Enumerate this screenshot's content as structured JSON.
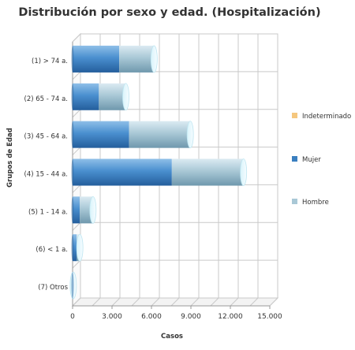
{
  "chart_data": {
    "type": "bar",
    "orientation": "horizontal",
    "stacked": true,
    "title": "Distribución por sexo y edad. (Hospitalización)",
    "xlabel": "Casos",
    "ylabel": "Grupos de Edad",
    "xlim": [
      0,
      15000
    ],
    "xticks": [
      "0",
      "3.000",
      "6.000",
      "9.000",
      "12.000",
      "15.000"
    ],
    "categories": [
      "(1) > 74 a.",
      "(2) 65 - 74 a.",
      "(3) 45 - 64 a.",
      "(4) 15 - 44 a.",
      "(5) 1 - 14 a.",
      "(6) < 1 a.",
      "(7) Otros"
    ],
    "series": [
      {
        "name": "Indeterminado",
        "color": "#f5c77e",
        "values": [
          0,
          0,
          0,
          0,
          0,
          0,
          0
        ]
      },
      {
        "name": "Mujer",
        "color": "#3a7fc0",
        "values": [
          3550,
          2000,
          4300,
          7550,
          550,
          300,
          10
        ]
      },
      {
        "name": "Hombre",
        "color": "#a9c8d6",
        "values": [
          2650,
          2050,
          4650,
          5450,
          1000,
          250,
          40
        ]
      }
    ],
    "grid": true,
    "legend": "right"
  }
}
